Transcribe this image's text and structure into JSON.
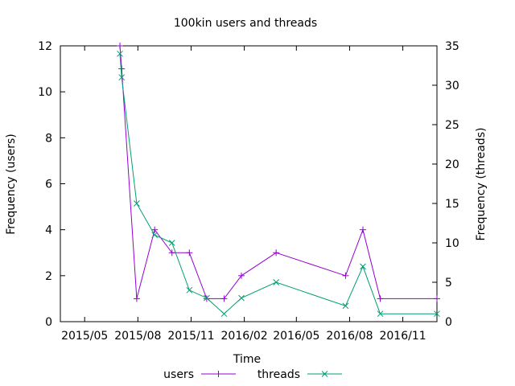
{
  "chart_data": {
    "type": "line",
    "title": "100kin users and threads",
    "xlabel": "Time",
    "ylabel": "Frequency (users)",
    "y2label": "Frequency (threads)",
    "x_ticks": [
      "2015/05",
      "2015/08",
      "2015/11",
      "2016/02",
      "2016/05",
      "2016/08",
      "2016/11"
    ],
    "y_ticks": [
      "0",
      "2",
      "4",
      "6",
      "8",
      "10",
      "12"
    ],
    "y2_ticks": [
      "0",
      "5",
      "10",
      "15",
      "20",
      "25",
      "30",
      "35"
    ],
    "xlim": [
      "2015-03-20",
      "2016-12-30"
    ],
    "ylim": [
      0,
      12
    ],
    "y2lim": [
      0,
      35
    ],
    "grid": false,
    "legend": "bottom",
    "series": [
      {
        "name": "users",
        "axis": "left",
        "marker": "+",
        "color": "#9400d3",
        "points": [
          {
            "x": "2015-07-01",
            "y": 12
          },
          {
            "x": "2015-07-04",
            "y": 11
          },
          {
            "x": "2015-07-30",
            "y": 1
          },
          {
            "x": "2015-08-30",
            "y": 4
          },
          {
            "x": "2015-09-29",
            "y": 3
          },
          {
            "x": "2015-10-29",
            "y": 3
          },
          {
            "x": "2015-11-28",
            "y": 1
          },
          {
            "x": "2015-12-28",
            "y": 1
          },
          {
            "x": "2016-01-27",
            "y": 2
          },
          {
            "x": "2016-03-27",
            "y": 3
          },
          {
            "x": "2016-07-25",
            "y": 2
          },
          {
            "x": "2016-08-24",
            "y": 4
          },
          {
            "x": "2016-09-23",
            "y": 1
          },
          {
            "x": "2016-12-30",
            "y": 1
          }
        ]
      },
      {
        "name": "threads",
        "axis": "right",
        "marker": "x",
        "color": "#009e73",
        "points": [
          {
            "x": "2015-07-01",
            "y": 34
          },
          {
            "x": "2015-07-04",
            "y": 31
          },
          {
            "x": "2015-07-30",
            "y": 15
          },
          {
            "x": "2015-08-30",
            "y": 11
          },
          {
            "x": "2015-09-29",
            "y": 10
          },
          {
            "x": "2015-10-29",
            "y": 4
          },
          {
            "x": "2015-11-28",
            "y": 3
          },
          {
            "x": "2015-12-28",
            "y": 1
          },
          {
            "x": "2016-01-27",
            "y": 3
          },
          {
            "x": "2016-03-27",
            "y": 5
          },
          {
            "x": "2016-07-25",
            "y": 2
          },
          {
            "x": "2016-08-24",
            "y": 7
          },
          {
            "x": "2016-09-23",
            "y": 1
          },
          {
            "x": "2016-12-30",
            "y": 1
          }
        ]
      }
    ]
  }
}
